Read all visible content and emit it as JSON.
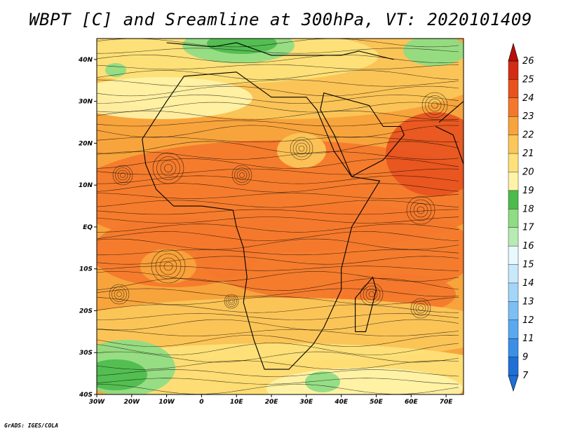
{
  "title": "WBPT [C] and Sreamline at 300hPa, VT: 2020101409",
  "credit": "GrADS: IGES/COLA",
  "map": {
    "lon_ticks": [
      "30W",
      "20W",
      "10W",
      "0",
      "10E",
      "20E",
      "30E",
      "40E",
      "50E",
      "60E",
      "70E"
    ],
    "lat_ticks": [
      "40N",
      "30N",
      "20N",
      "10N",
      "EQ",
      "10S",
      "20S",
      "30S",
      "40S"
    ],
    "lon_range": [
      -30,
      75
    ],
    "lat_range": [
      -40,
      45
    ]
  },
  "colorbar": {
    "labels": [
      "7",
      "9",
      "11",
      "12",
      "13",
      "14",
      "15",
      "16",
      "17",
      "18",
      "19",
      "20",
      "21",
      "22",
      "23",
      "24",
      "25",
      "26"
    ],
    "colors": [
      "#1f6fd6",
      "#3c8fe6",
      "#5aa8f0",
      "#7dbff5",
      "#a3d5f8",
      "#c8e9fb",
      "#e8f8ff",
      "#b8ebb3",
      "#8edc84",
      "#4dbb4d",
      "#fff3a8",
      "#fde27a",
      "#fbc75a",
      "#f8a43c",
      "#f4782c",
      "#e7521f",
      "#d42c14",
      "#b80f0a"
    ]
  },
  "colors": {
    "hot": "#f4782c",
    "very_hot": "#e7521f",
    "warm": "#f8a43c",
    "mild": "#fbc75a",
    "pale": "#fde27a",
    "cool": "#fff3a8",
    "green": "#4dbb4d",
    "light_green": "#8edc84"
  }
}
